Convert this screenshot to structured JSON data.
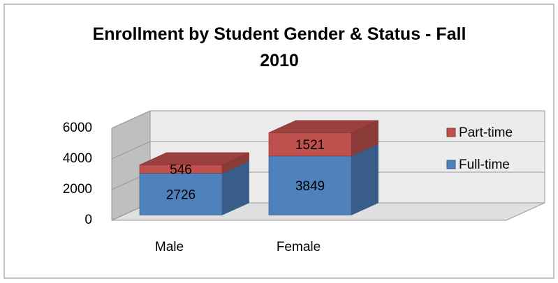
{
  "chart_data": {
    "type": "bar3d_stacked",
    "title": "Enrollment by Student Gender & Status - Fall 2010",
    "categories": [
      "Male",
      "Female"
    ],
    "series": [
      {
        "name": "Full-time",
        "color": "#4f81bd",
        "values": [
          2726,
          3849
        ]
      },
      {
        "name": "Part-time",
        "color": "#c0504d",
        "values": [
          546,
          1521
        ]
      }
    ],
    "ylim": [
      0,
      6000
    ],
    "yticks": [
      0,
      2000,
      4000,
      6000
    ],
    "grid": true,
    "legend": "right"
  }
}
